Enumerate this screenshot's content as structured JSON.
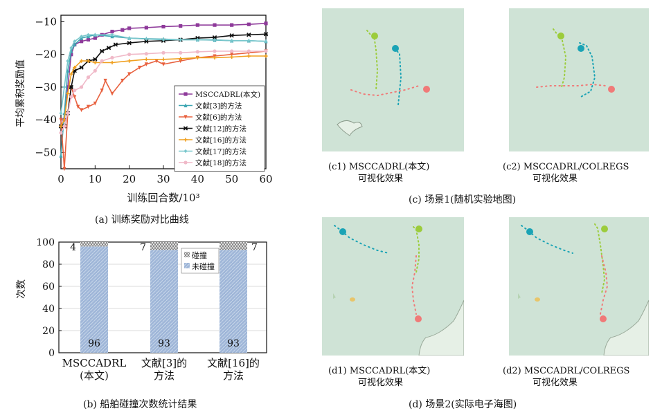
{
  "reward_chart": {
    "chart_data": {
      "type": "line",
      "ylabel": "平均累积奖励值",
      "xlabel": "训练回合数/10³",
      "xlim": [
        0,
        60
      ],
      "ylim": [
        -55,
        -8
      ],
      "xticks": [
        "0",
        "10",
        "20",
        "30",
        "40",
        "50",
        "60"
      ],
      "yticks": [
        "−10",
        "−20",
        "−30",
        "−40",
        "−50"
      ],
      "ytick_values": [
        -10,
        -20,
        -30,
        -40,
        -50
      ],
      "xtick_values": [
        0,
        10,
        20,
        30,
        40,
        50,
        60
      ],
      "legend_position": "lower-right",
      "series": [
        {
          "name": "MSCCADRL(本文)",
          "color": "#8e3a9a",
          "marker": "square",
          "points": [
            [
              0,
              -42
            ],
            [
              1,
              -40
            ],
            [
              2,
              -30
            ],
            [
              3,
              -20
            ],
            [
              4,
              -17
            ],
            [
              6,
              -16
            ],
            [
              8,
              -15.5
            ],
            [
              10,
              -15
            ],
            [
              12,
              -14
            ],
            [
              15,
              -13
            ],
            [
              18,
              -12.5
            ],
            [
              20,
              -12
            ],
            [
              25,
              -11.8
            ],
            [
              30,
              -11.5
            ],
            [
              35,
              -11.3
            ],
            [
              40,
              -11
            ],
            [
              45,
              -11
            ],
            [
              50,
              -11
            ],
            [
              55,
              -10.8
            ],
            [
              60,
              -10.5
            ]
          ]
        },
        {
          "name": "文献[3]的方法",
          "color": "#3fa7b3",
          "marker": "triangle",
          "points": [
            [
              0,
              -51
            ],
            [
              1,
              -38
            ],
            [
              2,
              -25
            ],
            [
              3,
              -19
            ],
            [
              4,
              -17
            ],
            [
              6,
              -15
            ],
            [
              8,
              -14.5
            ],
            [
              10,
              -14
            ],
            [
              15,
              -14.5
            ],
            [
              20,
              -15
            ],
            [
              25,
              -15.2
            ],
            [
              30,
              -15.3
            ],
            [
              35,
              -15.5
            ],
            [
              40,
              -15.5
            ],
            [
              45,
              -15.6
            ],
            [
              50,
              -15.8
            ],
            [
              55,
              -15.8
            ],
            [
              60,
              -16
            ]
          ]
        },
        {
          "name": "文献[6]的方法",
          "color": "#e8613f",
          "marker": "triangle-down",
          "points": [
            [
              0,
              -40
            ],
            [
              1,
              -55
            ],
            [
              2,
              -38
            ],
            [
              3,
              -30
            ],
            [
              4,
              -33
            ],
            [
              5,
              -36
            ],
            [
              6,
              -37
            ],
            [
              8,
              -36
            ],
            [
              10,
              -35
            ],
            [
              12,
              -31
            ],
            [
              13,
              -28
            ],
            [
              15,
              -32
            ],
            [
              18,
              -28
            ],
            [
              20,
              -26
            ],
            [
              23,
              -24
            ],
            [
              25,
              -23
            ],
            [
              28,
              -22
            ],
            [
              30,
              -23
            ],
            [
              35,
              -22
            ],
            [
              40,
              -21
            ],
            [
              45,
              -20.5
            ],
            [
              50,
              -20
            ],
            [
              55,
              -19.5
            ],
            [
              60,
              -19
            ]
          ]
        },
        {
          "name": "文献[12]的方法",
          "color": "#111111",
          "marker": "star",
          "points": [
            [
              0,
              -42
            ],
            [
              1,
              -42
            ],
            [
              2,
              -38
            ],
            [
              3,
              -30
            ],
            [
              4,
              -25
            ],
            [
              6,
              -24
            ],
            [
              8,
              -22
            ],
            [
              10,
              -21.5
            ],
            [
              12,
              -19
            ],
            [
              14,
              -18
            ],
            [
              16,
              -17
            ],
            [
              20,
              -16.5
            ],
            [
              25,
              -16
            ],
            [
              30,
              -15.8
            ],
            [
              35,
              -15.5
            ],
            [
              40,
              -15
            ],
            [
              45,
              -14.8
            ],
            [
              50,
              -14.2
            ],
            [
              55,
              -14
            ],
            [
              60,
              -13.8
            ]
          ]
        },
        {
          "name": "文献[16]的方法",
          "color": "#f0a020",
          "marker": "plus",
          "points": [
            [
              0,
              -42
            ],
            [
              1,
              -40
            ],
            [
              2,
              -32
            ],
            [
              3,
              -26
            ],
            [
              4,
              -24
            ],
            [
              6,
              -22
            ],
            [
              8,
              -22
            ],
            [
              10,
              -22.5
            ],
            [
              15,
              -22.5
            ],
            [
              20,
              -22
            ],
            [
              25,
              -21.5
            ],
            [
              30,
              -21.5
            ],
            [
              35,
              -21.3
            ],
            [
              40,
              -21
            ],
            [
              45,
              -21
            ],
            [
              50,
              -20.8
            ],
            [
              55,
              -20.5
            ],
            [
              60,
              -20.5
            ]
          ]
        },
        {
          "name": "文献[17]的方法",
          "color": "#79c7cc",
          "marker": "diamond",
          "points": [
            [
              0,
              -38
            ],
            [
              1,
              -30
            ],
            [
              2,
              -22
            ],
            [
              3,
              -18
            ],
            [
              4,
              -16
            ],
            [
              6,
              -14.5
            ],
            [
              8,
              -14
            ],
            [
              10,
              -14
            ],
            [
              15,
              -14
            ],
            [
              20,
              -15
            ],
            [
              25,
              -15.3
            ],
            [
              30,
              -15.5
            ],
            [
              35,
              -15.5
            ],
            [
              40,
              -15.5
            ],
            [
              45,
              -15.5
            ],
            [
              50,
              -15.8
            ],
            [
              55,
              -15.8
            ],
            [
              60,
              -16
            ]
          ]
        },
        {
          "name": "文献[18]的方法",
          "color": "#f0b9c8",
          "marker": "circle",
          "points": [
            [
              0,
              -44
            ],
            [
              1,
              -42
            ],
            [
              2,
              -38
            ],
            [
              3,
              -33
            ],
            [
              4,
              -31
            ],
            [
              6,
              -30
            ],
            [
              8,
              -27
            ],
            [
              10,
              -25
            ],
            [
              12,
              -22
            ],
            [
              15,
              -21
            ],
            [
              20,
              -20
            ],
            [
              25,
              -19.8
            ],
            [
              30,
              -19.5
            ],
            [
              35,
              -19.5
            ],
            [
              40,
              -19.2
            ],
            [
              45,
              -19
            ],
            [
              50,
              -19
            ],
            [
              55,
              -19
            ],
            [
              60,
              -19
            ]
          ]
        }
      ]
    },
    "caption": "(a)   训练奖励对比曲线"
  },
  "collision_chart": {
    "chart_data": {
      "type": "bar",
      "ylabel": "次数",
      "ylim": [
        0,
        100
      ],
      "yticks": [
        "0",
        "20",
        "40",
        "60",
        "80",
        "100"
      ],
      "ytick_values": [
        0,
        20,
        40,
        60,
        80,
        100
      ],
      "legend_position": "top-right",
      "categories": [
        [
          "MSCCADRL",
          "(本文)"
        ],
        [
          "文献[3]的",
          "方法"
        ],
        [
          "文献[16]的",
          "方法"
        ]
      ],
      "series": [
        {
          "name": "未碰撞",
          "values": [
            96,
            93,
            93
          ],
          "labels": [
            "96",
            "93",
            "93"
          ],
          "color": "#9fb6d8"
        },
        {
          "name": "碰撞",
          "values": [
            4,
            7,
            7
          ],
          "labels": [
            "4",
            "7",
            "7"
          ],
          "color": "#dddddd"
        }
      ]
    },
    "caption": "(b)   船舶碰撞次数统计结果"
  },
  "scenario1": {
    "caption": "(c)   场景1(随机实验地图)",
    "left": {
      "label": "(c1)   MSCCADRL(本文)",
      "sub": "可视化效果"
    },
    "right": {
      "label": "(c2)   MSCCADRL/COLREGS",
      "sub": "可视化效果"
    }
  },
  "scenario2": {
    "caption": "(d)   场景2(实际电子海图)",
    "left": {
      "label": "(d1)   MSCCADRL(本文)",
      "sub": "可视化效果"
    },
    "right": {
      "label": "(d2)   MSCCADRL/COLREGS",
      "sub": "可视化效果"
    }
  },
  "colors": {
    "map_sea": "#cfe3d6",
    "land": "#e6f0e6",
    "ship_green": "#9ccc3c",
    "ship_teal": "#1aa3b5",
    "ship_red": "#f07a78",
    "ship_yellow": "#e8c56a"
  }
}
